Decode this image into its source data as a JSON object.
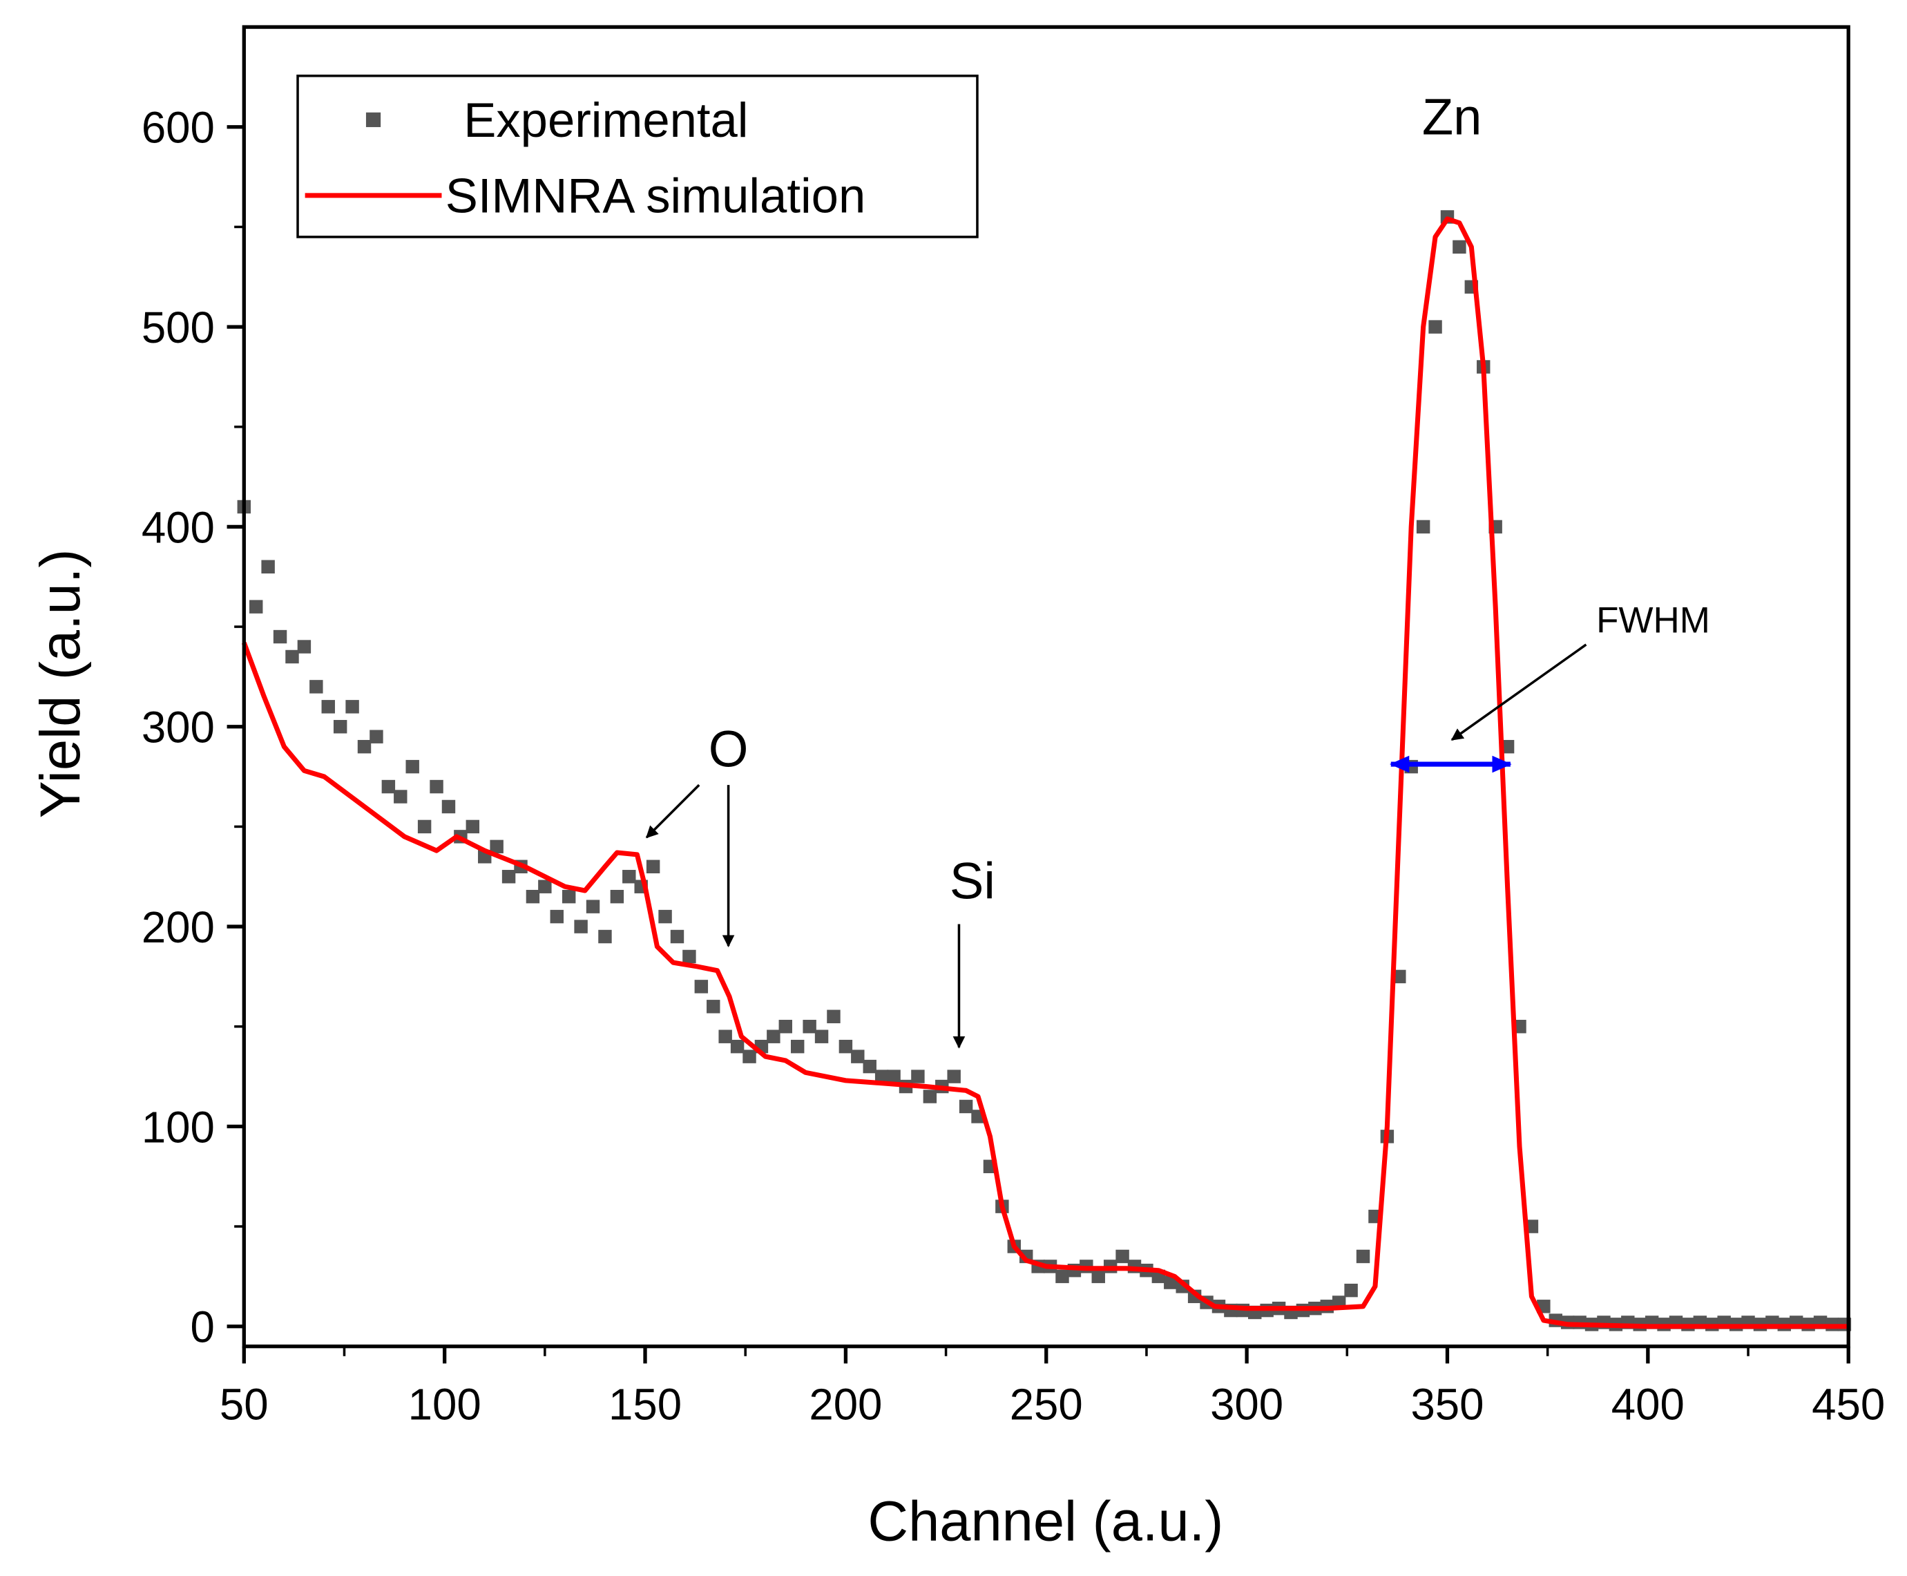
{
  "chart_data": {
    "type": "scatter",
    "x_label": "Channel (a.u.)",
    "y_label": "Yield (a.u.)",
    "xlim": [
      50,
      450
    ],
    "ylim": [
      -10,
      650
    ],
    "xticks": [
      50,
      100,
      150,
      200,
      250,
      300,
      350,
      400,
      450
    ],
    "yticks": [
      0,
      100,
      200,
      300,
      400,
      500,
      600
    ],
    "legend": "upper left",
    "annotations": [
      "Zn",
      "O",
      "Si",
      "FWHM"
    ],
    "series": [
      {
        "name": "Experimental",
        "type": "scatter",
        "color": "#555555",
        "x": [
          50,
          53,
          56,
          59,
          62,
          65,
          68,
          71,
          74,
          77,
          80,
          83,
          86,
          89,
          92,
          95,
          98,
          101,
          104,
          107,
          110,
          113,
          116,
          119,
          122,
          125,
          128,
          131,
          134,
          137,
          140,
          143,
          146,
          149,
          152,
          155,
          158,
          161,
          164,
          167,
          170,
          173,
          176,
          179,
          182,
          185,
          188,
          191,
          194,
          197,
          200,
          203,
          206,
          209,
          212,
          215,
          218,
          221,
          224,
          227,
          230,
          233,
          236,
          239,
          242,
          245,
          248,
          251,
          254,
          257,
          260,
          263,
          266,
          269,
          272,
          275,
          278,
          281,
          284,
          287,
          290,
          293,
          296,
          299,
          302,
          305,
          308,
          311,
          314,
          317,
          320,
          323,
          326,
          329,
          332,
          335,
          338,
          341,
          344,
          347,
          350,
          353,
          356,
          359,
          362,
          365,
          368,
          371,
          374,
          377,
          380,
          383,
          386,
          389,
          392,
          395,
          398,
          401,
          404,
          407,
          410,
          413,
          416,
          419,
          422,
          425,
          428,
          431,
          434,
          437,
          440,
          443,
          446,
          449
        ],
        "values": [
          410,
          360,
          380,
          345,
          335,
          340,
          320,
          310,
          300,
          310,
          290,
          295,
          270,
          265,
          280,
          250,
          270,
          260,
          245,
          250,
          235,
          240,
          225,
          230,
          215,
          220,
          205,
          215,
          200,
          210,
          195,
          215,
          225,
          220,
          230,
          205,
          195,
          185,
          170,
          160,
          145,
          140,
          135,
          140,
          145,
          150,
          140,
          150,
          145,
          155,
          140,
          135,
          130,
          125,
          125,
          120,
          125,
          115,
          120,
          125,
          110,
          105,
          80,
          60,
          40,
          35,
          30,
          30,
          25,
          28,
          30,
          25,
          30,
          35,
          30,
          28,
          25,
          22,
          20,
          15,
          12,
          10,
          8,
          8,
          7,
          8,
          9,
          7,
          8,
          9,
          10,
          12,
          18,
          35,
          55,
          95,
          175,
          280,
          400,
          500,
          555,
          540,
          520,
          480,
          400,
          290,
          150,
          50,
          10,
          3,
          2,
          2,
          1,
          2,
          1,
          2,
          1,
          2,
          1,
          2,
          1,
          2,
          1,
          2,
          1,
          2,
          1,
          2,
          1,
          2,
          1,
          2,
          1,
          1
        ]
      },
      {
        "name": "SIMNRA simulation",
        "type": "line",
        "color": "#ff0000",
        "x": [
          50,
          55,
          60,
          65,
          70,
          80,
          90,
          98,
          103,
          110,
          120,
          130,
          135,
          140,
          143,
          148,
          150,
          153,
          157,
          163,
          168,
          171,
          174,
          180,
          185,
          190,
          200,
          220,
          230,
          233,
          236,
          239,
          242,
          245,
          250,
          260,
          270,
          278,
          282,
          288,
          292,
          300,
          310,
          320,
          329,
          332,
          335,
          338,
          341,
          344,
          347,
          350,
          353,
          356,
          359,
          362,
          365,
          368,
          371,
          374,
          380,
          400,
          450
        ],
        "values": [
          342,
          315,
          290,
          278,
          275,
          260,
          245,
          238,
          245,
          238,
          230,
          220,
          218,
          230,
          237,
          236,
          220,
          190,
          182,
          180,
          178,
          165,
          145,
          135,
          133,
          127,
          123,
          120,
          118,
          115,
          95,
          60,
          40,
          33,
          30,
          29,
          29,
          28,
          25,
          15,
          10,
          9,
          9,
          9,
          10,
          20,
          100,
          250,
          400,
          500,
          545,
          554,
          552,
          540,
          480,
          360,
          220,
          90,
          15,
          3,
          1,
          0,
          0
        ]
      }
    ]
  }
}
